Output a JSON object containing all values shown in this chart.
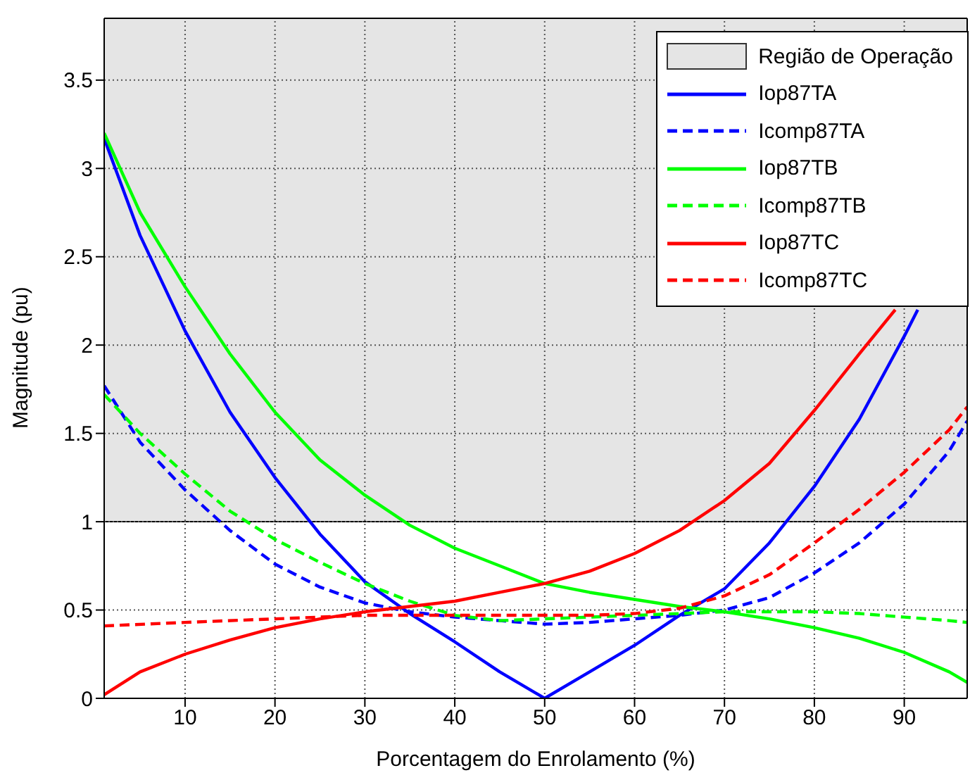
{
  "chart_data": {
    "type": "line",
    "xlabel": "Porcentagem do Enrolamento (%)",
    "ylabel": "Magnitude (pu)",
    "xlim": [
      1,
      97
    ],
    "ylim": [
      0,
      3.85
    ],
    "xticks": [
      10,
      20,
      30,
      40,
      50,
      60,
      70,
      80,
      90
    ],
    "yticks": [
      0,
      0.5,
      1,
      1.5,
      2,
      2.5,
      3,
      3.5
    ],
    "grid": true,
    "legend": "top right",
    "marker": "none",
    "bands": [
      {
        "axis": "y",
        "from": 1,
        "to": 3.85,
        "label": "Região de Operação",
        "color": "#e5e5e5"
      }
    ],
    "series": [
      {
        "name": "Iop87TA",
        "color": "#0000ff",
        "line_style": "solid",
        "x": [
          1,
          5,
          10,
          15,
          20,
          25,
          30,
          35,
          40,
          45,
          50,
          55,
          60,
          65,
          70,
          75,
          80,
          85,
          90,
          91.5
        ],
        "values": [
          3.17,
          2.62,
          2.08,
          1.62,
          1.25,
          0.93,
          0.66,
          0.48,
          0.32,
          0.15,
          0.0,
          0.15,
          0.3,
          0.47,
          0.62,
          0.88,
          1.2,
          1.58,
          2.05,
          2.2
        ]
      },
      {
        "name": "Icomp87TA",
        "color": "#0000ff",
        "line_style": "dashed",
        "x": [
          1,
          5,
          10,
          15,
          20,
          25,
          30,
          35,
          40,
          45,
          50,
          55,
          60,
          65,
          70,
          75,
          80,
          85,
          90,
          95,
          97
        ],
        "values": [
          1.77,
          1.45,
          1.18,
          0.95,
          0.76,
          0.63,
          0.54,
          0.49,
          0.46,
          0.44,
          0.42,
          0.43,
          0.45,
          0.47,
          0.5,
          0.57,
          0.71,
          0.88,
          1.1,
          1.4,
          1.57
        ]
      },
      {
        "name": "Iop87TB",
        "color": "#00ff00",
        "line_style": "solid",
        "x": [
          1,
          5,
          10,
          15,
          20,
          25,
          30,
          35,
          40,
          45,
          50,
          55,
          60,
          65,
          70,
          75,
          80,
          85,
          90,
          95,
          97
        ],
        "values": [
          3.2,
          2.75,
          2.33,
          1.95,
          1.62,
          1.35,
          1.15,
          0.98,
          0.85,
          0.75,
          0.65,
          0.6,
          0.56,
          0.52,
          0.49,
          0.45,
          0.4,
          0.34,
          0.26,
          0.15,
          0.09
        ]
      },
      {
        "name": "Icomp87TB",
        "color": "#00ff00",
        "line_style": "dashed",
        "x": [
          1,
          5,
          10,
          15,
          20,
          25,
          30,
          35,
          40,
          45,
          50,
          55,
          60,
          65,
          70,
          75,
          80,
          85,
          90,
          95,
          97
        ],
        "values": [
          1.72,
          1.5,
          1.27,
          1.06,
          0.9,
          0.77,
          0.65,
          0.55,
          0.47,
          0.44,
          0.45,
          0.46,
          0.47,
          0.48,
          0.49,
          0.49,
          0.49,
          0.48,
          0.46,
          0.44,
          0.43
        ]
      },
      {
        "name": "Iop87TC",
        "color": "#ff0000",
        "line_style": "solid",
        "x": [
          1,
          5,
          10,
          15,
          20,
          25,
          30,
          35,
          40,
          45,
          50,
          55,
          60,
          65,
          70,
          75,
          80,
          85,
          89
        ],
        "values": [
          0.02,
          0.15,
          0.25,
          0.33,
          0.4,
          0.45,
          0.49,
          0.52,
          0.55,
          0.6,
          0.65,
          0.72,
          0.82,
          0.95,
          1.12,
          1.33,
          1.63,
          1.95,
          2.2
        ]
      },
      {
        "name": "Icomp87TC",
        "color": "#ff0000",
        "line_style": "dashed",
        "x": [
          1,
          10,
          20,
          30,
          40,
          50,
          55,
          60,
          65,
          70,
          75,
          80,
          85,
          90,
          95,
          97
        ],
        "values": [
          0.41,
          0.43,
          0.45,
          0.47,
          0.47,
          0.47,
          0.47,
          0.48,
          0.51,
          0.58,
          0.7,
          0.88,
          1.07,
          1.28,
          1.52,
          1.65
        ]
      }
    ]
  }
}
